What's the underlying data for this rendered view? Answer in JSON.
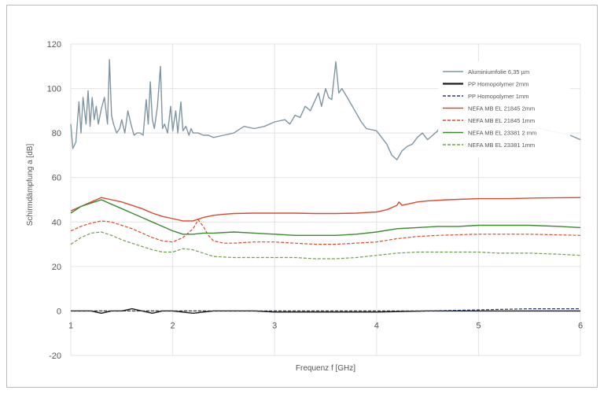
{
  "chart_data": {
    "type": "line",
    "title": "",
    "xlabel": "Frequenz f [GHz]",
    "ylabel": "Schirmdämpfung a [dB]",
    "xlim": [
      1,
      6
    ],
    "ylim": [
      -20,
      120
    ],
    "xticks": [
      1,
      2,
      3,
      4,
      5,
      6
    ],
    "yticks": [
      -20,
      0,
      20,
      40,
      60,
      80,
      100,
      120
    ],
    "grid": true,
    "legend_position": "top-right",
    "series": [
      {
        "name": "Aluminiumfolie 6,35 µm",
        "color": "#7f95a3",
        "dash": "solid",
        "x": [
          1.0,
          1.02,
          1.05,
          1.08,
          1.1,
          1.12,
          1.15,
          1.17,
          1.19,
          1.21,
          1.23,
          1.25,
          1.27,
          1.3,
          1.33,
          1.36,
          1.38,
          1.4,
          1.42,
          1.45,
          1.48,
          1.5,
          1.53,
          1.56,
          1.59,
          1.62,
          1.65,
          1.68,
          1.71,
          1.74,
          1.76,
          1.78,
          1.8,
          1.82,
          1.85,
          1.88,
          1.9,
          1.92,
          1.95,
          1.98,
          2.0,
          2.03,
          2.05,
          2.08,
          2.1,
          2.13,
          2.16,
          2.18,
          2.2,
          2.25,
          2.3,
          2.35,
          2.4,
          2.5,
          2.6,
          2.7,
          2.8,
          2.9,
          3.0,
          3.1,
          3.15,
          3.2,
          3.25,
          3.3,
          3.35,
          3.4,
          3.43,
          3.46,
          3.5,
          3.53,
          3.56,
          3.6,
          3.63,
          3.66,
          3.7,
          3.75,
          3.8,
          3.85,
          3.9,
          4.0,
          4.1,
          4.15,
          4.2,
          4.25,
          4.3,
          4.35,
          4.4,
          4.45,
          4.5,
          4.55,
          4.6,
          4.65,
          4.7,
          4.75,
          4.8,
          4.85,
          4.9,
          5.0,
          5.1,
          5.2,
          5.3,
          5.4,
          5.5,
          5.6,
          5.7,
          5.8,
          5.9,
          6.0
        ],
        "y": [
          84,
          73,
          76,
          94,
          80,
          96,
          84,
          99,
          83,
          96,
          86,
          92,
          84,
          91,
          96,
          84,
          113,
          88,
          84,
          80,
          82,
          86,
          80,
          90,
          84,
          79,
          80,
          80,
          79,
          95,
          84,
          103,
          86,
          82,
          92,
          110,
          82,
          84,
          80,
          92,
          81,
          90,
          80,
          94,
          81,
          83,
          79,
          82,
          80,
          80,
          79,
          79,
          78,
          79,
          80,
          83,
          82,
          83,
          85,
          86,
          84,
          88,
          87,
          92,
          90,
          95,
          98,
          92,
          100,
          96,
          95,
          112,
          98,
          100,
          97,
          93,
          89,
          85,
          82,
          81,
          75,
          70,
          68,
          72,
          74,
          75,
          78,
          80,
          77,
          79,
          81,
          86,
          80,
          82,
          84,
          86,
          80,
          82,
          83,
          84,
          83,
          84,
          82,
          82,
          81,
          80,
          79,
          77
        ]
      },
      {
        "name": "PP Homopolymer 2mm",
        "color": "#1a1a1a",
        "dash": "solid",
        "x": [
          1.0,
          1.1,
          1.2,
          1.3,
          1.4,
          1.5,
          1.6,
          1.7,
          1.8,
          1.9,
          2.0,
          2.2,
          2.4,
          2.6,
          2.8,
          3.0,
          3.5,
          4.0,
          4.5,
          5.0,
          5.5,
          6.0
        ],
        "y": [
          0,
          0,
          0,
          -1,
          0,
          0,
          1,
          0,
          -1,
          0,
          0,
          -1,
          0,
          0,
          0,
          -0.5,
          -0.5,
          -0.5,
          0,
          0,
          0,
          0
        ]
      },
      {
        "name": "PP Homopolymer 1mm",
        "color": "#283a6e",
        "dash": "dash",
        "x": [
          1.0,
          1.5,
          2.0,
          2.5,
          3.0,
          3.5,
          4.0,
          4.5,
          5.0,
          5.5,
          6.0
        ],
        "y": [
          0,
          0,
          0,
          0,
          0,
          0,
          0,
          0,
          0.5,
          1,
          1
        ]
      },
      {
        "name": "NEFA MB EL 21845 2mm",
        "color": "#d84a30",
        "dash": "solid",
        "x": [
          1.0,
          1.1,
          1.2,
          1.3,
          1.4,
          1.5,
          1.6,
          1.7,
          1.8,
          1.9,
          2.0,
          2.1,
          2.2,
          2.3,
          2.4,
          2.5,
          2.6,
          2.8,
          3.0,
          3.2,
          3.4,
          3.6,
          3.8,
          4.0,
          4.1,
          4.2,
          4.22,
          4.25,
          4.3,
          4.4,
          4.5,
          4.7,
          5.0,
          5.3,
          5.6,
          6.0
        ],
        "y": [
          45,
          47,
          49,
          51,
          50,
          49,
          47.5,
          46,
          44,
          42.5,
          41.5,
          40.5,
          40.5,
          42,
          43,
          43.5,
          43.8,
          44,
          44,
          44,
          43.8,
          43.8,
          44,
          44.5,
          45.5,
          47.5,
          49,
          47.5,
          48,
          49,
          49.5,
          50,
          50.5,
          50.5,
          50.8,
          51
        ]
      },
      {
        "name": "NEFA MB EL 21845 1mm",
        "color": "#d84a30",
        "dash": "dash",
        "x": [
          1.0,
          1.1,
          1.2,
          1.3,
          1.4,
          1.5,
          1.6,
          1.7,
          1.8,
          1.9,
          2.0,
          2.1,
          2.2,
          2.25,
          2.3,
          2.35,
          2.4,
          2.5,
          2.6,
          2.8,
          3.0,
          3.2,
          3.4,
          3.6,
          3.8,
          4.0,
          4.2,
          4.4,
          4.6,
          5.0,
          5.5,
          6.0
        ],
        "y": [
          36,
          38,
          39.5,
          40.5,
          40,
          38.5,
          37,
          35,
          33,
          31.5,
          31,
          33,
          37,
          41,
          38,
          34,
          31.5,
          30.5,
          30.5,
          31,
          31,
          30.5,
          30,
          30,
          30.5,
          31,
          32.5,
          33.5,
          34,
          34.5,
          34.5,
          34
        ]
      },
      {
        "name": "NEFA MB EL 23381 2 mm",
        "color": "#3a8a2e",
        "dash": "solid",
        "x": [
          1.0,
          1.1,
          1.2,
          1.3,
          1.4,
          1.5,
          1.6,
          1.7,
          1.8,
          1.9,
          2.0,
          2.1,
          2.2,
          2.3,
          2.4,
          2.6,
          2.8,
          3.0,
          3.2,
          3.4,
          3.6,
          3.8,
          4.0,
          4.2,
          4.4,
          4.6,
          4.8,
          5.0,
          5.2,
          5.5,
          5.8,
          6.0
        ],
        "y": [
          44,
          47,
          48.5,
          50,
          48,
          46,
          44,
          42,
          40,
          38,
          36,
          34.5,
          34.5,
          35,
          35,
          35.5,
          35,
          34.5,
          34,
          34,
          34,
          34.5,
          35.5,
          37,
          37.5,
          38,
          38,
          38.5,
          38.5,
          38.5,
          38,
          37.5
        ]
      },
      {
        "name": "NEFA MB EL 23381 1mm",
        "color": "#6fa04a",
        "dash": "dash",
        "x": [
          1.0,
          1.1,
          1.2,
          1.3,
          1.4,
          1.5,
          1.6,
          1.7,
          1.8,
          1.9,
          2.0,
          2.1,
          2.2,
          2.3,
          2.4,
          2.6,
          2.8,
          3.0,
          3.2,
          3.4,
          3.6,
          3.8,
          4.0,
          4.2,
          4.4,
          4.6,
          4.8,
          5.0,
          5.2,
          5.5,
          5.8,
          6.0
        ],
        "y": [
          30,
          33,
          35,
          35.5,
          34,
          32,
          30.5,
          29,
          27.5,
          26.5,
          26.5,
          28,
          27.5,
          26,
          24.5,
          24,
          24,
          24,
          24,
          23.5,
          23.5,
          24,
          25,
          26,
          26.5,
          26.5,
          26.5,
          26.5,
          26,
          26,
          25.5,
          25
        ]
      }
    ]
  }
}
